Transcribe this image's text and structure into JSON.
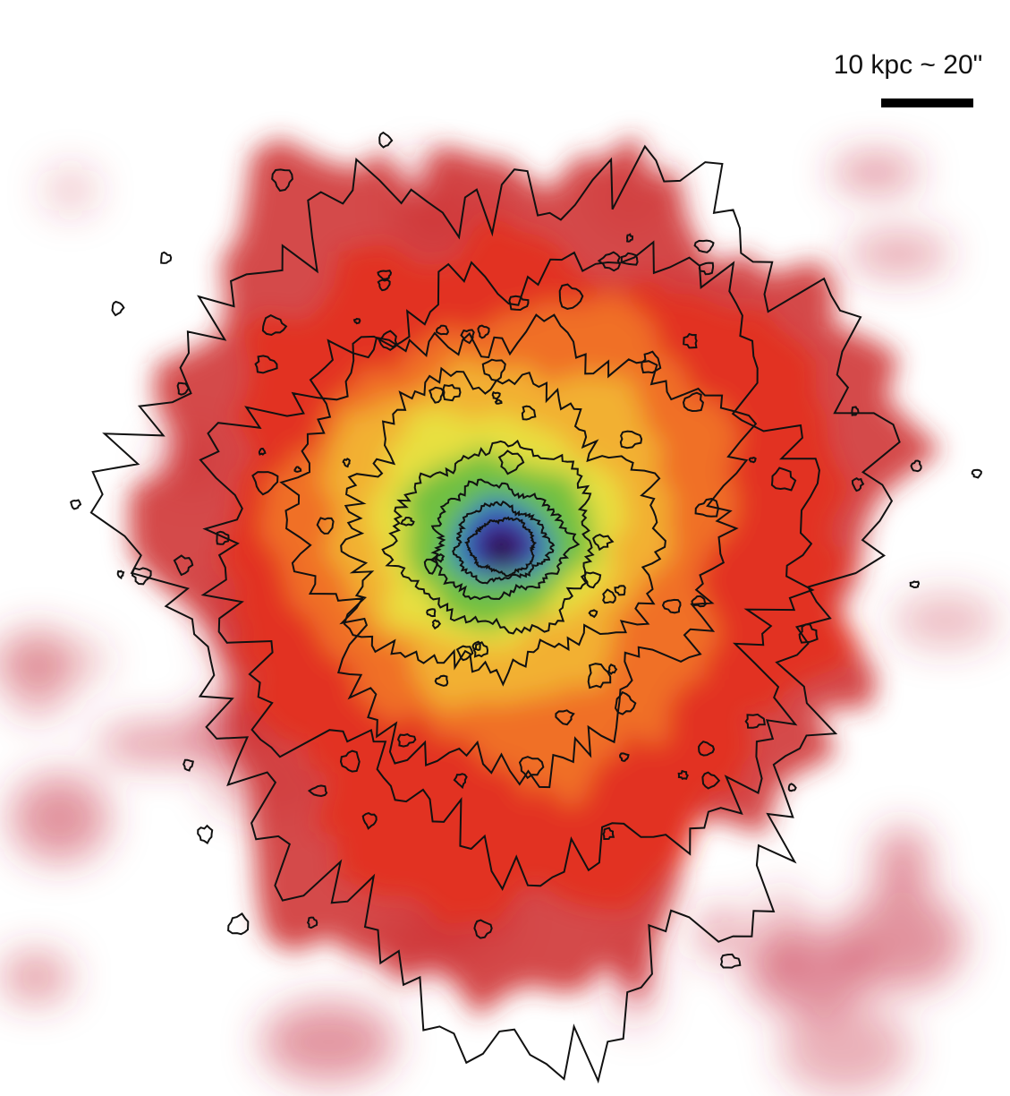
{
  "scale_bar": {
    "label": "10 kpc ~ 20\""
  }
}
